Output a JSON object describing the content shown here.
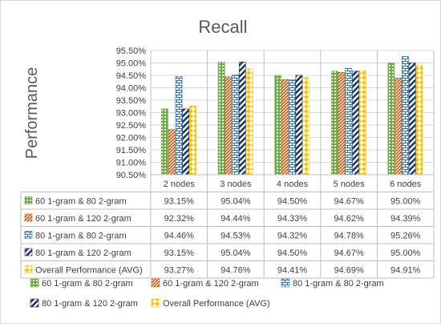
{
  "chart_data": {
    "type": "bar",
    "title": "Recall",
    "ylabel": "Performance",
    "xlabel": "",
    "ylim": [
      0.905,
      0.955
    ],
    "ytick_step": 0.005,
    "yticks": [
      "90.50%",
      "91.00%",
      "91.50%",
      "92.00%",
      "92.50%",
      "93.00%",
      "93.50%",
      "94.00%",
      "94.50%",
      "95.00%",
      "95.50%"
    ],
    "categories": [
      "2 nodes",
      "3 nodes",
      "4 nodes",
      "5 nodes",
      "6 nodes"
    ],
    "grid": true,
    "legend_position": "bottom",
    "series": [
      {
        "name": "60 1-gram & 80 2-gram",
        "color": "#70ad47",
        "pattern": "dots",
        "values": [
          0.9315,
          0.9504,
          0.945,
          0.9467,
          0.95
        ],
        "labels": [
          "93.15%",
          "95.04%",
          "94.50%",
          "94.67%",
          "95.00%"
        ]
      },
      {
        "name": "60 1-gram & 120 2-gram",
        "color": "#c55a11",
        "pattern": "diag",
        "values": [
          0.9232,
          0.9444,
          0.9433,
          0.9462,
          0.9439
        ],
        "labels": [
          "92.32%",
          "94.44%",
          "94.33%",
          "94.62%",
          "94.39%"
        ]
      },
      {
        "name": "80 1-gram & 80 2-gram",
        "color": "#2e75b6",
        "pattern": "brick",
        "values": [
          0.9446,
          0.9453,
          0.9432,
          0.9478,
          0.9526
        ],
        "labels": [
          "94.46%",
          "94.53%",
          "94.32%",
          "94.78%",
          "95.26%"
        ]
      },
      {
        "name": "80 1-gram & 120 2-gram",
        "color": "#203864",
        "pattern": "wide-diag",
        "values": [
          0.9315,
          0.9504,
          0.945,
          0.9467,
          0.95
        ],
        "labels": [
          "93.15%",
          "95.04%",
          "94.50%",
          "94.67%",
          "95.00%"
        ]
      },
      {
        "name": "Overall Performance (AVG)",
        "color": "#ffc000",
        "pattern": "zigzag",
        "values": [
          0.9327,
          0.9476,
          0.9441,
          0.9469,
          0.9491
        ],
        "labels": [
          "93.27%",
          "94.76%",
          "94.41%",
          "94.69%",
          "94.91%"
        ]
      }
    ]
  }
}
